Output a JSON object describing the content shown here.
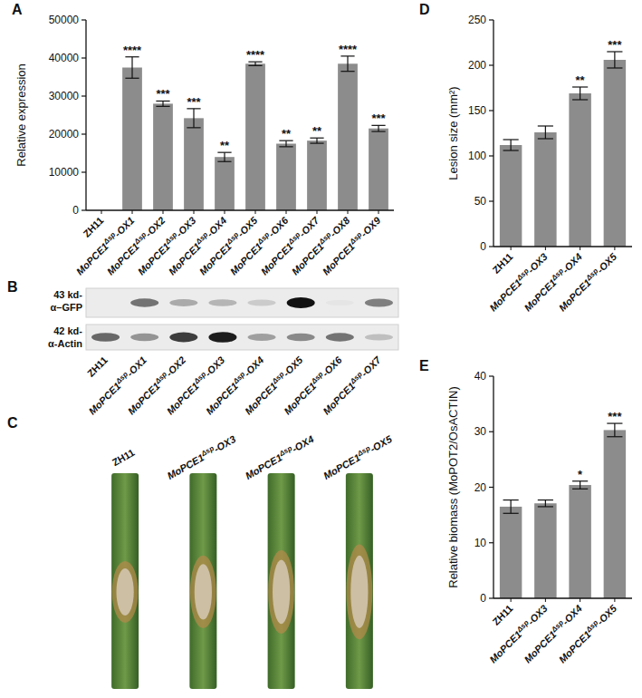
{
  "chart_data": [
    {
      "type": "bar",
      "panel": "A",
      "y_label": "Relative expression",
      "categories": [
        "ZH11",
        "MoPCE1Δsp-OX1",
        "MoPCE1Δsp-OX2",
        "MoPCE1Δsp-OX3",
        "MoPCE1Δsp-OX4",
        "MoPCE1Δsp-OX5",
        "MoPCE1Δsp-OX6",
        "MoPCE1Δsp-OX7",
        "MoPCE1Δsp-OX8",
        "MoPCE1Δsp-OX9"
      ],
      "values": [
        1,
        37500,
        28000,
        24200,
        14000,
        38500,
        17500,
        18300,
        38500,
        21500
      ],
      "errors": [
        0,
        2800,
        700,
        2500,
        1200,
        500,
        800,
        700,
        2000,
        800
      ],
      "annotations": [
        null,
        "****",
        "***",
        "***",
        "**",
        "****",
        "**",
        "**",
        "****",
        "***"
      ],
      "color": "#8c8c8c",
      "ylim": [
        0,
        50000
      ],
      "yticks": [
        0,
        10000,
        20000,
        30000,
        40000,
        50000
      ],
      "grid": false
    },
    {
      "type": "bar",
      "panel": "D",
      "y_label": "Lesion size (mm²)",
      "categories": [
        "ZH11",
        "MoPCE1Δsp-OX3",
        "MoPCE1Δsp-OX4",
        "MoPCE1Δsp-OX5"
      ],
      "values": [
        112,
        126,
        169,
        206
      ],
      "errors": [
        6,
        7,
        7,
        9
      ],
      "annotations": [
        null,
        null,
        "**",
        "***"
      ],
      "color": "#8c8c8c",
      "ylim": [
        0,
        250
      ],
      "yticks": [
        0,
        50,
        100,
        150,
        200,
        250
      ],
      "grid": false
    },
    {
      "type": "bar",
      "panel": "E",
      "y_label": "Relative biomass (MoPOT2/OsACTIN)",
      "categories": [
        "ZH11",
        "MoPCE1Δsp-OX3",
        "MoPCE1Δsp-OX4",
        "MoPCE1Δsp-OX5"
      ],
      "values": [
        16.5,
        17.1,
        20.4,
        30.3
      ],
      "errors": [
        1.2,
        0.6,
        0.7,
        1.2
      ],
      "annotations": [
        null,
        null,
        "*",
        "***"
      ],
      "color": "#8c8c8c",
      "ylim": [
        0,
        40
      ],
      "yticks": [
        0,
        10,
        20,
        30,
        40
      ],
      "grid": false
    }
  ],
  "blot": {
    "panel": "B",
    "lanes": [
      "ZH11",
      "MoPCE1Δsp-OX1",
      "MoPCE1Δsp-OX2",
      "MoPCE1Δsp-OX3",
      "MoPCE1Δsp-OX4",
      "MoPCE1Δsp-OX5",
      "MoPCE1Δsp-OX6",
      "MoPCE1Δsp-OX7"
    ],
    "rows": [
      {
        "size": "43 kd-",
        "antibody": "α–GFP",
        "intensity": [
          0,
          0.55,
          0.3,
          0.25,
          0.15,
          1,
          0.03,
          0.5
        ]
      },
      {
        "size": "42 kd-",
        "antibody": "α-Actin",
        "intensity": [
          0.6,
          0.4,
          0.8,
          0.95,
          0.35,
          0.45,
          0.55,
          0.2
        ]
      }
    ]
  },
  "leaves": {
    "panel": "C",
    "labels": [
      "ZH11",
      "MoPCE1Δsp-OX3",
      "MoPCE1Δsp-OX4",
      "MoPCE1Δsp-OX5"
    ]
  }
}
